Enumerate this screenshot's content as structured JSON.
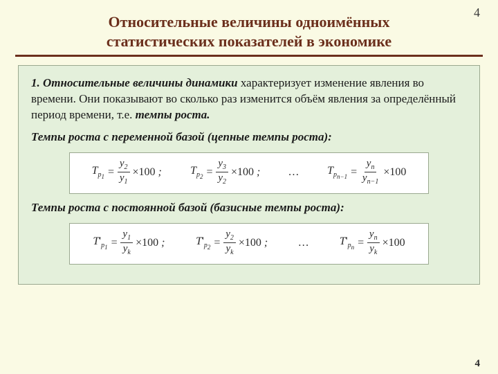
{
  "page_number_top": "4",
  "page_number_bottom": "4",
  "colors": {
    "page_bg": "#fafae4",
    "panel_bg": "#e4f0db",
    "panel_border": "#9aa88f",
    "title_color": "#6b2f1c",
    "formula_bg": "#ffffff",
    "text_color": "#1a1a1a"
  },
  "typography": {
    "title_fontsize_pt": 17,
    "body_fontsize_pt": 13,
    "formula_fontsize_pt": 12,
    "font_family": "Times New Roman / serif"
  },
  "title_line1": "Относительные величины одноимённых",
  "title_line2": "статистических показателей в экономике",
  "para1_strong_lead": "1. Относительные величины динамики",
  "para1_rest_a": " характеризует изме­не­ние явления во времени. Они показывают во сколько раз изме­нит­ся объём явления за определённый период времени, т.е. ",
  "para1_strong_tail": "тем­пы роста.",
  "subheading1": "Темпы роста с переменной базой (цепные темпы роста):",
  "subheading2": "Темпы роста с постоянной базой (базисные темпы роста):",
  "formula_chain": {
    "symbol": "T",
    "sub_main": "p",
    "times_100": "×100",
    "sep": ";",
    "ellipsis": "…",
    "terms": [
      {
        "idx": "1",
        "num_y": "y",
        "num_sub": "2",
        "den_y": "y",
        "den_sub": "1"
      },
      {
        "idx": "2",
        "num_y": "y",
        "num_sub": "3",
        "den_y": "y",
        "den_sub": "2"
      },
      {
        "idx": "n−1",
        "num_y": "y",
        "num_sub": "n",
        "den_y": "y",
        "den_sub": "n−1"
      }
    ]
  },
  "formula_base": {
    "symbol": "T",
    "sub_main": "p",
    "prime": "'",
    "times_100": "×100",
    "sep": ";",
    "ellipsis": "…",
    "terms": [
      {
        "idx": "1",
        "num_y": "y",
        "num_sub": "1",
        "den_y": "y",
        "den_sub": "k"
      },
      {
        "idx": "2",
        "num_y": "y",
        "num_sub": "2",
        "den_y": "y",
        "den_sub": "k"
      },
      {
        "idx": "n",
        "num_y": "y",
        "num_sub": "n",
        "den_y": "y",
        "den_sub": "k"
      }
    ]
  }
}
